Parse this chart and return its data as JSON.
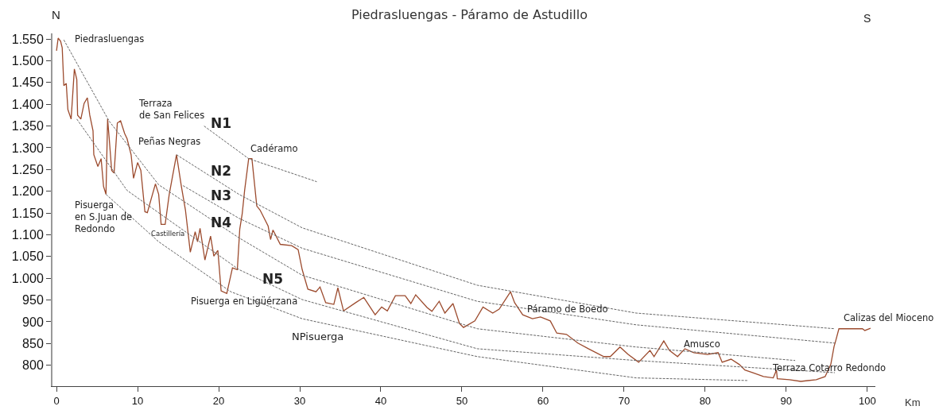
{
  "chart_data": {
    "type": "line",
    "title": "Piedrasluengas - Páramo de Astudillo",
    "xlabel": "Km",
    "xlim": [
      -0.5,
      101
    ],
    "ylim": [
      752,
      1563
    ],
    "xticks": [
      0,
      10,
      20,
      30,
      40,
      50,
      60,
      70,
      80,
      90,
      100
    ],
    "yticks": [
      {
        "value": 800,
        "label": "800"
      },
      {
        "value": 850,
        "label": "850"
      },
      {
        "value": 900,
        "label": "900"
      },
      {
        "value": 950,
        "label": "950"
      },
      {
        "value": 1000,
        "label": "1.000"
      },
      {
        "value": 1050,
        "label": "1.050"
      },
      {
        "value": 1100,
        "label": "1.100"
      },
      {
        "value": 1150,
        "label": "1.150"
      },
      {
        "value": 1200,
        "label": "1.200"
      },
      {
        "value": 1250,
        "label": "1.250"
      },
      {
        "value": 1300,
        "label": "1.300"
      },
      {
        "value": 1350,
        "label": "1.350"
      },
      {
        "value": 1400,
        "label": "1.400"
      },
      {
        "value": 1450,
        "label": "1.450"
      },
      {
        "value": 1500,
        "label": "1.500"
      },
      {
        "value": 1550,
        "label": "1.550"
      }
    ],
    "series": [
      {
        "color": "#9c4b2e",
        "line_style": "solid",
        "x": [
          0.0,
          0.2,
          0.5,
          0.7,
          0.9,
          1.2,
          1.4,
          1.8,
          2.2,
          2.5,
          2.6,
          3.0,
          3.4,
          3.8,
          4.1,
          4.5,
          4.6,
          5.1,
          5.5,
          5.8,
          6.1,
          6.3,
          6.5,
          6.8,
          7.1,
          7.5,
          7.9,
          8.4,
          8.7,
          9.2,
          9.5,
          10.0,
          10.4,
          10.9,
          11.2,
          12.2,
          12.6,
          12.9,
          13.4,
          13.9,
          14.8,
          15.4,
          15.9,
          16.5,
          17.1,
          17.4,
          17.7,
          18.3,
          19.0,
          19.4,
          19.9,
          20.3,
          21.0,
          21.7,
          22.3,
          22.6,
          22.9,
          23.2,
          23.7,
          24.1,
          24.7,
          25.1,
          26.1,
          26.4,
          26.7,
          27.6,
          29.0,
          29.8,
          30.3,
          31.0,
          32.0,
          32.5,
          33.2,
          34.2,
          34.7,
          35.4,
          36.9,
          37.9,
          39.3,
          40.1,
          40.8,
          41.8,
          43.0,
          43.7,
          44.3,
          45.7,
          46.3,
          47.2,
          47.9,
          48.9,
          49.7,
          50.2,
          51.6,
          52.6,
          53.8,
          54.6,
          56.0,
          56.5,
          57.5,
          58.7,
          59.7,
          60.9,
          61.7,
          62.9,
          64.3,
          65.6,
          67.5,
          68.3,
          69.5,
          70.5,
          71.8,
          73.2,
          73.7,
          74.9,
          75.6,
          76.6,
          77.5,
          78.6,
          80.3,
          81.6,
          82.1,
          83.2,
          84.2,
          84.9,
          85.9,
          87.2,
          88.4,
          88.8,
          88.9,
          90.4,
          91.8,
          93.7,
          94.8,
          95.5,
          95.9,
          96.1,
          96.5,
          99.4,
          99.7,
          100.4
        ],
        "values": [
          1523,
          1552,
          1545,
          1530,
          1443,
          1448,
          1388,
          1366,
          1481,
          1457,
          1375,
          1366,
          1402,
          1415,
          1375,
          1339,
          1284,
          1257,
          1275,
          1211,
          1193,
          1366,
          1321,
          1248,
          1242,
          1357,
          1362,
          1333,
          1321,
          1284,
          1230,
          1266,
          1248,
          1153,
          1151,
          1217,
          1193,
          1124,
          1124,
          1193,
          1284,
          1211,
          1157,
          1060,
          1107,
          1084,
          1115,
          1042,
          1097,
          1051,
          1064,
          971,
          965,
          1024,
          1020,
          1113,
          1148,
          1202,
          1275,
          1275,
          1166,
          1157,
          1120,
          1089,
          1111,
          1078,
          1075,
          1066,
          1020,
          975,
          969,
          980,
          944,
          940,
          978,
          925,
          944,
          956,
          916,
          934,
          925,
          960,
          960,
          942,
          962,
          933,
          924,
          947,
          920,
          942,
          896,
          887,
          902,
          934,
          920,
          929,
          969,
          944,
          916,
          907,
          911,
          902,
          874,
          871,
          851,
          838,
          820,
          820,
          842,
          825,
          807,
          834,
          820,
          856,
          834,
          820,
          838,
          829,
          825,
          829,
          807,
          814,
          802,
          789,
          783,
          774,
          771,
          789,
          769,
          767,
          763,
          767,
          774,
          802,
          843,
          856,
          884,
          884,
          880,
          885
        ]
      },
      {
        "color": "#666666",
        "line_style": "dotted",
        "x": [
          18.2,
          23.7,
          32.1
        ],
        "values": [
          1350,
          1275,
          1222
        ]
      },
      {
        "color": "#666666",
        "line_style": "dotted",
        "x": [
          14.8,
          22.5,
          30.3,
          51.9,
          71.5,
          96.0
        ],
        "values": [
          1284,
          1193,
          1116,
          984,
          920,
          884
        ]
      },
      {
        "color": "#666666",
        "line_style": "dotted",
        "x": [
          15.6,
          22.5,
          30.3,
          51.9,
          71.5,
          96.0
        ],
        "values": [
          1213,
          1138,
          1069,
          947,
          893,
          851
        ]
      },
      {
        "color": "#666666",
        "line_style": "dotted",
        "x": [
          0.9,
          6.5,
          12.6,
          22.5,
          30.3,
          51.9,
          71.5,
          91.1
        ],
        "values": [
          1548,
          1361,
          1215,
          1093,
          1007,
          884,
          842,
          811
        ]
      },
      {
        "color": "#666666",
        "line_style": "dotted",
        "x": [
          2.5,
          8.7,
          22.5,
          30.3,
          51.9,
          71.5,
          96.0
        ],
        "values": [
          1366,
          1202,
          1020,
          951,
          838,
          811,
          783
        ]
      },
      {
        "color": "#666666",
        "line_style": "dotted",
        "x": [
          6.1,
          12.6,
          21.5,
          30.3,
          51.9,
          71.5,
          85.2
        ],
        "values": [
          1193,
          1084,
          969,
          907,
          820,
          771,
          765
        ]
      }
    ],
    "annotations": [
      "N",
      "S",
      "Piedrasluengas",
      "Terraza\nde San Felices",
      "N1",
      "Peñas Negras",
      "Cadéramo",
      "N2",
      "N3",
      "Pisuerga\nen S.Juan de\nRedondo",
      "N4",
      "Castillería",
      "N5",
      "Pisuerga en Ligüérzana",
      "NPisuerga",
      "Páramo de Boedo",
      "Amusco",
      "Terraza Cotarro Redondo",
      "Calizas del Mioceno"
    ]
  }
}
